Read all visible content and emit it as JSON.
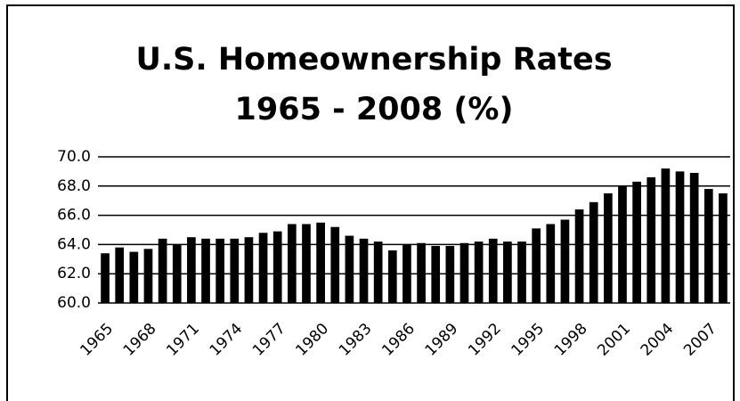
{
  "chart_data": {
    "type": "bar",
    "title": "U.S. Homeownership Rates",
    "subtitle": "1965 - 2008 (%)",
    "categories": [
      "1965",
      null,
      null,
      "1968",
      null,
      null,
      "1971",
      null,
      null,
      "1974",
      null,
      null,
      "1977",
      null,
      null,
      "1980",
      null,
      null,
      "1983",
      null,
      null,
      "1986",
      null,
      null,
      "1989",
      null,
      null,
      "1992",
      null,
      null,
      "1995",
      null,
      null,
      "1998",
      null,
      null,
      "2001",
      null,
      null,
      "2004",
      null,
      null,
      "2007",
      null
    ],
    "values": [
      63.4,
      63.8,
      63.5,
      63.7,
      64.4,
      64.0,
      64.5,
      64.4,
      64.4,
      64.4,
      64.5,
      64.8,
      64.9,
      65.4,
      65.4,
      65.5,
      65.2,
      64.6,
      64.4,
      64.2,
      63.6,
      64.0,
      64.1,
      63.9,
      63.9,
      64.1,
      64.2,
      64.4,
      64.2,
      64.2,
      65.1,
      65.4,
      65.7,
      66.4,
      66.9,
      67.5,
      68.0,
      68.3,
      68.6,
      69.2,
      69.0,
      68.9,
      67.8,
      67.5
    ],
    "color": "#000000",
    "ylim": [
      60,
      70
    ],
    "yticks": [
      {
        "value": 60,
        "label": "60.0"
      },
      {
        "value": 62,
        "label": "62.0"
      },
      {
        "value": 64,
        "label": "64.0"
      },
      {
        "value": 66,
        "label": "66.0"
      },
      {
        "value": 68,
        "label": "68.0"
      },
      {
        "value": 70,
        "label": "70.0"
      }
    ],
    "grid": true
  }
}
